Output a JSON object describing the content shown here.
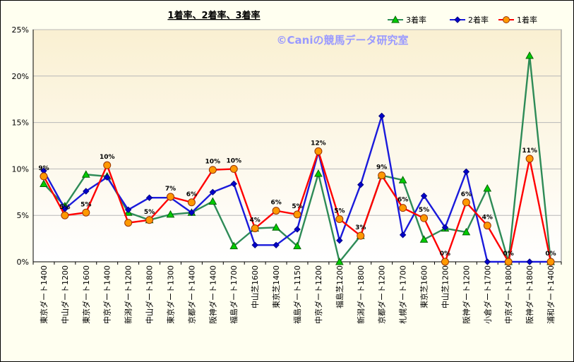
{
  "chart_data": {
    "type": "line",
    "title": "1着率、2着率、3着率",
    "watermark": "©Caniの競馬データ研究室",
    "y_unit": "%",
    "ylim": [
      0,
      25
    ],
    "yticks": [
      0,
      5,
      10,
      15,
      20,
      25
    ],
    "ytick_labels": [
      "0%",
      "5%",
      "10%",
      "15%",
      "20%",
      "25%"
    ],
    "grid": true,
    "legend_position": "top-right",
    "categories": [
      "東京ダート1400",
      "中山ダート1200",
      "東京ダート1600",
      "中京ダート1400",
      "新潟ダート1200",
      "中山ダート1800",
      "東京ダート1300",
      "京都ダート1400",
      "阪神ダート1400",
      "福島ダート1700",
      "中山芝1600",
      "東京芝1400",
      "福島ダート1150",
      "中京ダート1200",
      "福島芝1200",
      "新潟ダート1800",
      "京都ダート1200",
      "札幌ダート1700",
      "東京芝1600",
      "中山芝1200",
      "阪神ダート1200",
      "小倉ダート1700",
      "中京ダート1800",
      "阪神ダート1800",
      "浦和ダート1400"
    ],
    "series": [
      {
        "name": "3着率",
        "color": "#2e8b57",
        "marker": "triangle",
        "marker_fill": "#00cc00",
        "values": [
          8.4,
          6.0,
          9.4,
          9.2,
          5.3,
          4.5,
          5.1,
          5.3,
          6.5,
          1.7,
          3.6,
          3.7,
          1.7,
          9.5,
          0.0,
          2.8,
          9.3,
          8.8,
          2.4,
          3.6,
          3.2,
          7.9,
          0.0,
          22.2,
          0.0
        ]
      },
      {
        "name": "2着率",
        "color": "#1a1adb",
        "marker": "diamond",
        "marker_fill": "#0000cc",
        "values": [
          9.8,
          5.7,
          7.6,
          9.1,
          5.6,
          6.9,
          6.9,
          5.3,
          7.5,
          8.4,
          1.8,
          1.8,
          3.5,
          11.8,
          2.3,
          8.3,
          15.7,
          2.9,
          7.1,
          3.7,
          9.7,
          0.0,
          0.0,
          0.0,
          0.0
        ]
      },
      {
        "name": "1着率",
        "color": "#ff0000",
        "marker": "circle",
        "marker_fill": "#ff9900",
        "values": [
          9.2,
          5.0,
          5.3,
          10.4,
          4.2,
          4.5,
          7.0,
          6.4,
          9.9,
          10.0,
          3.6,
          5.5,
          5.1,
          11.9,
          4.6,
          2.8,
          9.3,
          5.8,
          4.7,
          0.0,
          6.4,
          3.9,
          0.0,
          11.1,
          0.0
        ]
      }
    ],
    "data_labels": {
      "series": "1着率",
      "values": [
        "9%",
        "5%",
        "5%",
        "10%",
        "",
        "5%",
        "7%",
        "6%",
        "10%",
        "10%",
        "4%",
        "6%",
        "5%",
        "12%",
        "5%",
        "3%",
        "9%",
        "6%",
        "5%",
        "0%",
        "6%",
        "4%",
        "0%",
        "11%",
        "0%"
      ]
    }
  },
  "colors": {
    "plot_gradient_top": "#faf0d2",
    "plot_gradient_bottom": "#ffffff",
    "gridline": "#b8b8b8"
  }
}
